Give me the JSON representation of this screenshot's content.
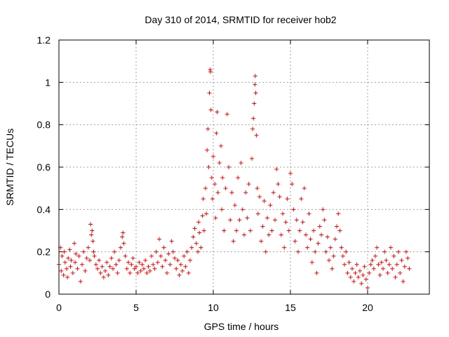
{
  "chart_data": {
    "type": "scatter",
    "title": "Day 310 of 2014, SRMTID for receiver hob2",
    "xlabel": "GPS time / hours",
    "ylabel": "SRMTID / TECUs",
    "xlim": [
      0,
      24
    ],
    "ylim": [
      0,
      1.2
    ],
    "xticks": [
      0,
      5,
      10,
      15,
      20
    ],
    "xtick_labels": [
      "0",
      "5",
      "10",
      "15",
      "20"
    ],
    "yticks": [
      0,
      0.2,
      0.4,
      0.6,
      0.8,
      1.0,
      1.2
    ],
    "ytick_labels": [
      "0",
      "0.2",
      "0.4",
      "0.6",
      "0.8",
      "1",
      "1.2"
    ],
    "grid": true,
    "marker": "+",
    "color": "#ff0000",
    "series": [
      {
        "name": "SRMTID",
        "points": [
          [
            0.0,
            0.14
          ],
          [
            0.1,
            0.22
          ],
          [
            0.15,
            0.11
          ],
          [
            0.2,
            0.18
          ],
          [
            0.3,
            0.09
          ],
          [
            0.35,
            0.2
          ],
          [
            0.4,
            0.15
          ],
          [
            0.5,
            0.12
          ],
          [
            0.55,
            0.08
          ],
          [
            0.6,
            0.17
          ],
          [
            0.7,
            0.21
          ],
          [
            0.75,
            0.13
          ],
          [
            0.8,
            0.16
          ],
          [
            0.9,
            0.1
          ],
          [
            1.0,
            0.24
          ],
          [
            1.05,
            0.15
          ],
          [
            1.1,
            0.19
          ],
          [
            1.2,
            0.12
          ],
          [
            1.3,
            0.18
          ],
          [
            1.4,
            0.06
          ],
          [
            1.5,
            0.14
          ],
          [
            1.6,
            0.2
          ],
          [
            1.7,
            0.11
          ],
          [
            1.8,
            0.17
          ],
          [
            1.9,
            0.22
          ],
          [
            2.0,
            0.16
          ],
          [
            2.05,
            0.33
          ],
          [
            2.1,
            0.28
          ],
          [
            2.15,
            0.3
          ],
          [
            2.2,
            0.25
          ],
          [
            2.25,
            0.2
          ],
          [
            2.3,
            0.18
          ],
          [
            2.4,
            0.14
          ],
          [
            2.5,
            0.12
          ],
          [
            2.6,
            0.16
          ],
          [
            2.7,
            0.1
          ],
          [
            2.8,
            0.13
          ],
          [
            2.9,
            0.08
          ],
          [
            3.0,
            0.11
          ],
          [
            3.1,
            0.15
          ],
          [
            3.2,
            0.09
          ],
          [
            3.3,
            0.13
          ],
          [
            3.4,
            0.17
          ],
          [
            3.5,
            0.12
          ],
          [
            3.6,
            0.2
          ],
          [
            3.7,
            0.14
          ],
          [
            3.8,
            0.1
          ],
          [
            3.9,
            0.16
          ],
          [
            4.0,
            0.22
          ],
          [
            4.1,
            0.27
          ],
          [
            4.15,
            0.29
          ],
          [
            4.2,
            0.24
          ],
          [
            4.3,
            0.18
          ],
          [
            4.4,
            0.12
          ],
          [
            4.5,
            0.15
          ],
          [
            4.6,
            0.1
          ],
          [
            4.7,
            0.14
          ],
          [
            4.8,
            0.17
          ],
          [
            4.9,
            0.12
          ],
          [
            5.0,
            0.13
          ],
          [
            5.1,
            0.1
          ],
          [
            5.2,
            0.15
          ],
          [
            5.3,
            0.11
          ],
          [
            5.4,
            0.14
          ],
          [
            5.5,
            0.12
          ],
          [
            5.6,
            0.16
          ],
          [
            5.7,
            0.1
          ],
          [
            5.8,
            0.13
          ],
          [
            5.9,
            0.11
          ],
          [
            6.0,
            0.18
          ],
          [
            6.1,
            0.14
          ],
          [
            6.2,
            0.12
          ],
          [
            6.3,
            0.2
          ],
          [
            6.4,
            0.15
          ],
          [
            6.5,
            0.26
          ],
          [
            6.6,
            0.18
          ],
          [
            6.7,
            0.13
          ],
          [
            6.8,
            0.22
          ],
          [
            6.9,
            0.16
          ],
          [
            7.0,
            0.1
          ],
          [
            7.1,
            0.19
          ],
          [
            7.2,
            0.14
          ],
          [
            7.3,
            0.25
          ],
          [
            7.4,
            0.2
          ],
          [
            7.5,
            0.17
          ],
          [
            7.6,
            0.12
          ],
          [
            7.7,
            0.16
          ],
          [
            7.8,
            0.09
          ],
          [
            7.9,
            0.14
          ],
          [
            8.0,
            0.11
          ],
          [
            8.1,
            0.18
          ],
          [
            8.2,
            0.13
          ],
          [
            8.3,
            0.2
          ],
          [
            8.4,
            0.1
          ],
          [
            8.5,
            0.16
          ],
          [
            8.6,
            0.22
          ],
          [
            8.7,
            0.27
          ],
          [
            8.8,
            0.31
          ],
          [
            8.9,
            0.24
          ],
          [
            9.0,
            0.2
          ],
          [
            9.05,
            0.34
          ],
          [
            9.1,
            0.29
          ],
          [
            9.2,
            0.22
          ],
          [
            9.3,
            0.37
          ],
          [
            9.35,
            0.45
          ],
          [
            9.4,
            0.3
          ],
          [
            9.5,
            0.5
          ],
          [
            9.55,
            0.38
          ],
          [
            9.6,
            0.68
          ],
          [
            9.65,
            0.78
          ],
          [
            9.7,
            0.6
          ],
          [
            9.75,
            0.95
          ],
          [
            9.8,
            1.06
          ],
          [
            9.82,
            1.05
          ],
          [
            9.85,
            0.87
          ],
          [
            9.9,
            0.55
          ],
          [
            9.95,
            0.45
          ],
          [
            10.0,
            0.65
          ],
          [
            10.1,
            0.52
          ],
          [
            10.15,
            0.36
          ],
          [
            10.2,
            0.76
          ],
          [
            10.25,
            0.86
          ],
          [
            10.3,
            0.48
          ],
          [
            10.4,
            0.62
          ],
          [
            10.5,
            0.7
          ],
          [
            10.55,
            0.4
          ],
          [
            10.6,
            0.55
          ],
          [
            10.7,
            0.3
          ],
          [
            10.8,
            0.5
          ],
          [
            10.9,
            0.85
          ],
          [
            11.0,
            0.6
          ],
          [
            11.1,
            0.35
          ],
          [
            11.2,
            0.48
          ],
          [
            11.3,
            0.25
          ],
          [
            11.4,
            0.42
          ],
          [
            11.5,
            0.3
          ],
          [
            11.6,
            0.55
          ],
          [
            11.7,
            0.35
          ],
          [
            11.8,
            0.62
          ],
          [
            11.9,
            0.4
          ],
          [
            12.0,
            0.28
          ],
          [
            12.1,
            0.48
          ],
          [
            12.2,
            0.36
          ],
          [
            12.3,
            0.52
          ],
          [
            12.4,
            0.3
          ],
          [
            12.5,
            0.64
          ],
          [
            12.55,
            0.78
          ],
          [
            12.6,
            0.83
          ],
          [
            12.65,
            0.9
          ],
          [
            12.7,
            0.99
          ],
          [
            12.72,
            1.03
          ],
          [
            12.75,
            0.95
          ],
          [
            12.8,
            0.75
          ],
          [
            12.85,
            0.5
          ],
          [
            12.9,
            0.38
          ],
          [
            13.0,
            0.46
          ],
          [
            13.1,
            0.25
          ],
          [
            13.2,
            0.32
          ],
          [
            13.3,
            0.44
          ],
          [
            13.4,
            0.2
          ],
          [
            13.5,
            0.36
          ],
          [
            13.6,
            0.28
          ],
          [
            13.7,
            0.42
          ],
          [
            13.8,
            0.3
          ],
          [
            13.9,
            0.48
          ],
          [
            14.0,
            0.35
          ],
          [
            14.1,
            0.59
          ],
          [
            14.2,
            0.52
          ],
          [
            14.3,
            0.46
          ],
          [
            14.4,
            0.28
          ],
          [
            14.5,
            0.38
          ],
          [
            14.6,
            0.22
          ],
          [
            14.7,
            0.34
          ],
          [
            14.8,
            0.45
          ],
          [
            14.9,
            0.3
          ],
          [
            15.0,
            0.57
          ],
          [
            15.1,
            0.52
          ],
          [
            15.2,
            0.4
          ],
          [
            15.3,
            0.25
          ],
          [
            15.4,
            0.35
          ],
          [
            15.5,
            0.2
          ],
          [
            15.6,
            0.3
          ],
          [
            15.7,
            0.45
          ],
          [
            15.8,
            0.34
          ],
          [
            15.9,
            0.5
          ],
          [
            16.0,
            0.28
          ],
          [
            16.1,
            0.22
          ],
          [
            16.2,
            0.38
          ],
          [
            16.3,
            0.26
          ],
          [
            16.4,
            0.15
          ],
          [
            16.5,
            0.3
          ],
          [
            16.6,
            0.2
          ],
          [
            16.7,
            0.1
          ],
          [
            16.8,
            0.24
          ],
          [
            16.9,
            0.32
          ],
          [
            17.0,
            0.28
          ],
          [
            17.1,
            0.4
          ],
          [
            17.2,
            0.35
          ],
          [
            17.3,
            0.2
          ],
          [
            17.4,
            0.27
          ],
          [
            17.5,
            0.16
          ],
          [
            17.6,
            0.22
          ],
          [
            17.7,
            0.12
          ],
          [
            17.8,
            0.18
          ],
          [
            17.9,
            0.26
          ],
          [
            18.0,
            0.32
          ],
          [
            18.1,
            0.38
          ],
          [
            18.2,
            0.3
          ],
          [
            18.3,
            0.22
          ],
          [
            18.4,
            0.18
          ],
          [
            18.5,
            0.14
          ],
          [
            18.6,
            0.2
          ],
          [
            18.7,
            0.1
          ],
          [
            18.8,
            0.15
          ],
          [
            18.9,
            0.08
          ],
          [
            19.0,
            0.12
          ],
          [
            19.1,
            0.06
          ],
          [
            19.2,
            0.1
          ],
          [
            19.3,
            0.14
          ],
          [
            19.4,
            0.08
          ],
          [
            19.5,
            0.11
          ],
          [
            19.6,
            0.05
          ],
          [
            19.7,
            0.09
          ],
          [
            19.8,
            0.13
          ],
          [
            19.9,
            0.07
          ],
          [
            20.0,
            0.03
          ],
          [
            20.1,
            0.1
          ],
          [
            20.2,
            0.14
          ],
          [
            20.3,
            0.16
          ],
          [
            20.4,
            0.12
          ],
          [
            20.5,
            0.18
          ],
          [
            20.6,
            0.22
          ],
          [
            20.7,
            0.14
          ],
          [
            20.8,
            0.09
          ],
          [
            20.9,
            0.15
          ],
          [
            21.0,
            0.12
          ],
          [
            21.1,
            0.2
          ],
          [
            21.2,
            0.16
          ],
          [
            21.3,
            0.1
          ],
          [
            21.4,
            0.14
          ],
          [
            21.5,
            0.22
          ],
          [
            21.6,
            0.12
          ],
          [
            21.7,
            0.18
          ],
          [
            21.8,
            0.08
          ],
          [
            21.9,
            0.14
          ],
          [
            22.0,
            0.2
          ],
          [
            22.1,
            0.1
          ],
          [
            22.2,
            0.16
          ],
          [
            22.3,
            0.06
          ],
          [
            22.4,
            0.13
          ],
          [
            22.5,
            0.2
          ],
          [
            22.6,
            0.17
          ],
          [
            22.7,
            0.12
          ]
        ]
      }
    ]
  }
}
